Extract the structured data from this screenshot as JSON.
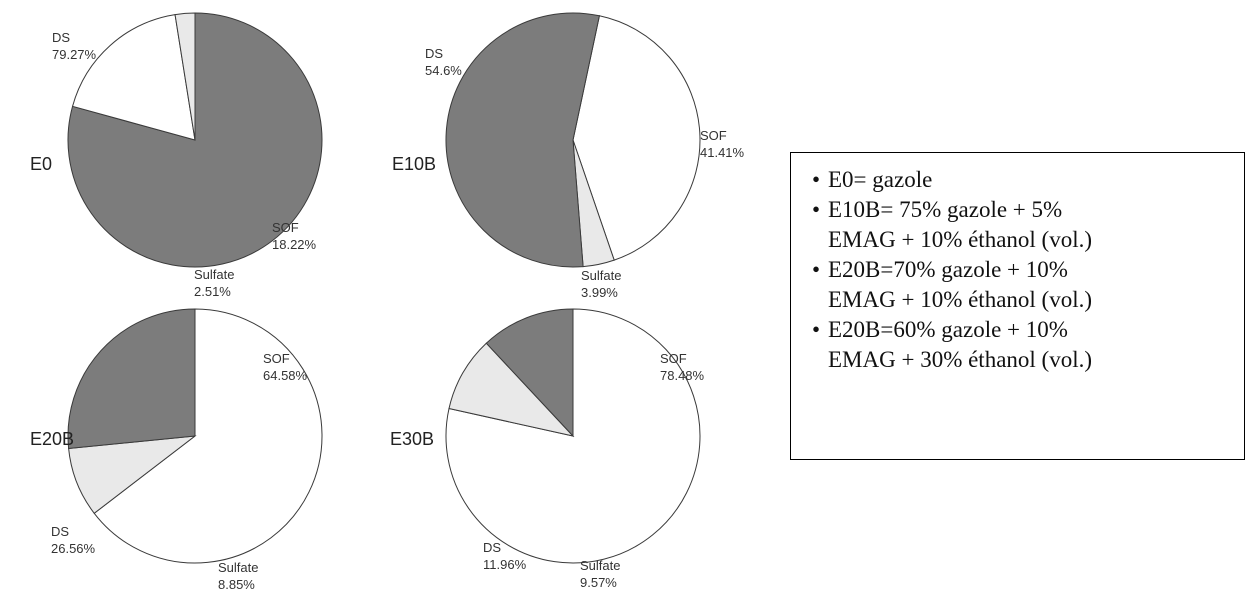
{
  "colors": {
    "DS": "#7c7c7c",
    "SOF": "#ffffff",
    "Sulfate": "#e9e9e9",
    "outline": "#3a3a3a"
  },
  "chart_data": [
    {
      "type": "pie",
      "title": "E0",
      "slices": [
        {
          "name": "DS",
          "value": 79.27,
          "label": "79.27%"
        },
        {
          "name": "SOF",
          "value": 18.22,
          "label": "18.22%"
        },
        {
          "name": "Sulfate",
          "value": 2.51,
          "label": "2.51%"
        }
      ]
    },
    {
      "type": "pie",
      "title": "E10B",
      "slices": [
        {
          "name": "DS",
          "value": 54.6,
          "label": "54.6%"
        },
        {
          "name": "SOF",
          "value": 41.41,
          "label": "41.41%"
        },
        {
          "name": "Sulfate",
          "value": 3.99,
          "label": "3.99%"
        }
      ]
    },
    {
      "type": "pie",
      "title": "E20B",
      "slices": [
        {
          "name": "DS",
          "value": 26.56,
          "label": "26.56%"
        },
        {
          "name": "SOF",
          "value": 64.58,
          "label": "64.58%"
        },
        {
          "name": "Sulfate",
          "value": 8.85,
          "label": "8.85%"
        }
      ]
    },
    {
      "type": "pie",
      "title": "E30B",
      "slices": [
        {
          "name": "DS",
          "value": 11.96,
          "label": "11.96%"
        },
        {
          "name": "SOF",
          "value": 78.48,
          "label": "78.48%"
        },
        {
          "name": "Sulfate",
          "value": 9.57,
          "label": "9.57%"
        }
      ]
    }
  ],
  "legend": {
    "items": [
      "E0= gazole",
      "E10B= 75% gazole + 5%\nEMAG + 10% éthanol (vol.)",
      "E20B=70% gazole + 10%\nEMAG + 10% éthanol (vol.)",
      "E20B=60% gazole + 10%\nEMAG + 30% éthanol (vol.)"
    ]
  }
}
